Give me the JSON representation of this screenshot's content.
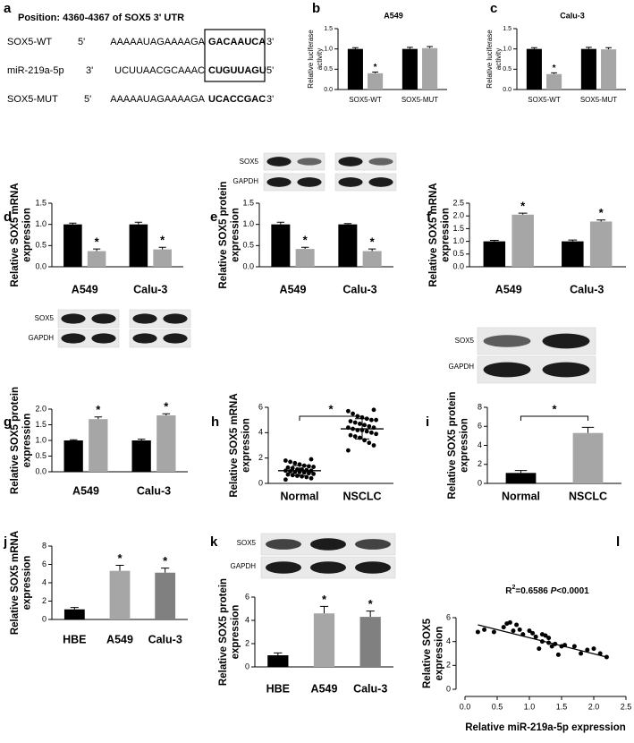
{
  "sequence_panel": {
    "panel": "a",
    "position": "Position: 4360-4367 of SOX5 3' UTR",
    "rows": [
      {
        "name": "SOX5-WT",
        "left": "5'",
        "seq": "AAAAAUAGAAAAGA",
        "site": "GACAAUCA",
        "right": "3'"
      },
      {
        "name": "miR-219a-5p",
        "left": "3'",
        "seq": "UCUUAACGCAAAC",
        "site": "CUGUUAGU",
        "right": "5'"
      },
      {
        "name": "SOX5-MUT",
        "left": "5'",
        "seq": "AAAAAUAGAAAAGA",
        "site": "UCACCGAC",
        "right": "3'"
      }
    ]
  },
  "blots": [
    {
      "labels": [
        "SOX5",
        "GAPDH"
      ]
    },
    {
      "labels": [
        "SOX5",
        "GAPDH"
      ]
    },
    {
      "labels": [
        "SOX5",
        "GAPDH"
      ]
    },
    {
      "labels": [
        "SOX5",
        "GAPDH"
      ]
    }
  ],
  "chart_data": [
    {
      "type": "bar",
      "panel": "b",
      "title": "A549",
      "ylabel": [
        "Relative luciferase",
        "activity"
      ],
      "categories": [
        "SOX5-WT",
        "SOX5-MUT"
      ],
      "series": [
        {
          "color": "#000000",
          "values": [
            1.0,
            1.0
          ],
          "errors": [
            0.03,
            0.04
          ]
        },
        {
          "color": "#a6a6a6",
          "values": [
            0.4,
            1.02
          ],
          "errors": [
            0.03,
            0.04
          ],
          "significance": [
            "*",
            null
          ]
        }
      ],
      "ylim": [
        0,
        1.5
      ],
      "yticks": [
        {
          "value": 0,
          "label": "0.0"
        },
        {
          "value": 0.5,
          "label": "0.5"
        },
        {
          "value": 1,
          "label": "1.0"
        },
        {
          "value": 1.5,
          "label": "1.5"
        }
      ]
    },
    {
      "type": "bar",
      "panel": "c",
      "title": "Calu-3",
      "ylabel": [
        "Relative luciferase",
        "activity"
      ],
      "categories": [
        "SOX5-WT",
        "SOX5-MUT"
      ],
      "series": [
        {
          "color": "#000000",
          "values": [
            1.0,
            1.0
          ],
          "errors": [
            0.03,
            0.04
          ]
        },
        {
          "color": "#a6a6a6",
          "values": [
            0.38,
            0.99
          ],
          "errors": [
            0.03,
            0.04
          ],
          "significance": [
            "*",
            null
          ]
        }
      ],
      "ylim": [
        0,
        1.5
      ],
      "yticks": [
        {
          "value": 0,
          "label": "0.0"
        },
        {
          "value": 0.5,
          "label": "0.5"
        },
        {
          "value": 1,
          "label": "1.0"
        },
        {
          "value": 1.5,
          "label": "1.5"
        }
      ]
    },
    {
      "type": "bar",
      "panel": "d",
      "ylabel": [
        "Relative SOX5 mRNA",
        "expression"
      ],
      "categories": [
        "A549",
        "Calu-3"
      ],
      "series": [
        {
          "color": "#000000",
          "values": [
            1.0,
            1.0
          ],
          "errors": [
            0.03,
            0.05
          ]
        },
        {
          "color": "#a6a6a6",
          "values": [
            0.37,
            0.41
          ],
          "errors": [
            0.05,
            0.05
          ],
          "significance": [
            "*",
            "*"
          ]
        }
      ],
      "ylim": [
        0,
        1.5
      ],
      "yticks": [
        {
          "value": 0,
          "label": "0.0"
        },
        {
          "value": 0.5,
          "label": "0.5"
        },
        {
          "value": 1,
          "label": "1.0"
        },
        {
          "value": 1.5,
          "label": "1.5"
        }
      ]
    },
    {
      "type": "bar",
      "panel": "e",
      "ylabel": [
        "Relative SOX5 protein",
        "expression"
      ],
      "categories": [
        "A549",
        "Calu-3"
      ],
      "series": [
        {
          "color": "#000000",
          "values": [
            1.0,
            1.0
          ],
          "errors": [
            0.05,
            0.02
          ]
        },
        {
          "color": "#a6a6a6",
          "values": [
            0.42,
            0.37
          ],
          "errors": [
            0.04,
            0.05
          ],
          "significance": [
            "*",
            "*"
          ]
        }
      ],
      "ylim": [
        0,
        1.5
      ],
      "yticks": [
        {
          "value": 0,
          "label": "0.0"
        },
        {
          "value": 0.5,
          "label": "0.5"
        },
        {
          "value": 1,
          "label": "1.0"
        },
        {
          "value": 1.5,
          "label": "1.5"
        }
      ]
    },
    {
      "type": "bar",
      "panel": "f",
      "ylabel": [
        "Relative SOX5 mRNA",
        "expression"
      ],
      "categories": [
        "A549",
        "Calu-3"
      ],
      "series": [
        {
          "color": "#000000",
          "values": [
            1.0,
            1.0
          ],
          "errors": [
            0.04,
            0.05
          ]
        },
        {
          "color": "#a6a6a6",
          "values": [
            2.05,
            1.78
          ],
          "errors": [
            0.06,
            0.06
          ],
          "significance": [
            "*",
            "*"
          ]
        }
      ],
      "ylim": [
        0,
        2.5
      ],
      "yticks": [
        {
          "value": 0,
          "label": "0.0"
        },
        {
          "value": 0.5,
          "label": "0.5"
        },
        {
          "value": 1,
          "label": "1.0"
        },
        {
          "value": 1.5,
          "label": "1.5"
        },
        {
          "value": 2,
          "label": "2.0"
        },
        {
          "value": 2.5,
          "label": "2.5"
        }
      ]
    },
    {
      "type": "bar",
      "panel": "g",
      "ylabel": [
        "Relative SOX5 protein",
        "expression"
      ],
      "categories": [
        "A549",
        "Calu-3"
      ],
      "series": [
        {
          "color": "#000000",
          "values": [
            1.0,
            1.0
          ],
          "errors": [
            0.02,
            0.04
          ]
        },
        {
          "color": "#a6a6a6",
          "values": [
            1.68,
            1.8
          ],
          "errors": [
            0.07,
            0.05
          ],
          "significance": [
            "*",
            "*"
          ]
        }
      ],
      "ylim": [
        0,
        2
      ],
      "yticks": [
        {
          "value": 0,
          "label": "0.0"
        },
        {
          "value": 0.5,
          "label": "0.5"
        },
        {
          "value": 1,
          "label": "1.0"
        },
        {
          "value": 1.5,
          "label": "1.5"
        },
        {
          "value": 2,
          "label": "2.0"
        }
      ]
    },
    {
      "type": "dotplot",
      "panel": "h",
      "ylabel": [
        "Relative SOX5 mRNA",
        "expression"
      ],
      "categories": [
        "Normal",
        "NSCLC"
      ],
      "points": [
        [
          0.3,
          0.4,
          0.5,
          0.55,
          0.6,
          0.65,
          0.7,
          0.75,
          0.8,
          0.85,
          0.9,
          0.9,
          0.95,
          1.0,
          1.0,
          1.05,
          1.1,
          1.1,
          1.2,
          1.25,
          1.3,
          1.35,
          1.4,
          1.5,
          1.6,
          1.7,
          1.8,
          1.9
        ],
        [
          2.6,
          3.0,
          3.2,
          3.4,
          3.6,
          3.7,
          3.8,
          3.9,
          4.0,
          4.1,
          4.2,
          4.2,
          4.3,
          4.4,
          4.4,
          4.5,
          4.6,
          4.7,
          4.8,
          4.9,
          5.0,
          5.0,
          5.1,
          5.2,
          5.3,
          5.5,
          5.7,
          5.8
        ]
      ],
      "means": [
        1.0,
        4.3
      ],
      "sd": [
        0.4,
        0.8
      ],
      "bracket_label": "*",
      "ylim": [
        0,
        6
      ],
      "yticks": [
        0,
        2,
        4,
        6
      ]
    },
    {
      "type": "bar",
      "panel": "i",
      "ylabel": [
        "Relative SOX5 protein",
        "expression"
      ],
      "categories": [
        "Normal",
        "NSCLC"
      ],
      "values": [
        1.1,
        5.3
      ],
      "errors": [
        0.25,
        0.6
      ],
      "colors": [
        "#000000",
        "#a6a6a6"
      ],
      "bracket_label": "*",
      "ylim": [
        0,
        8
      ],
      "yticks": [
        0,
        2,
        4,
        6,
        8
      ]
    },
    {
      "type": "bar",
      "panel": "j",
      "ylabel": [
        "Relative SOX5 mRNA",
        "expression"
      ],
      "categories": [
        "HBE",
        "A549",
        "Calu-3"
      ],
      "values": [
        1.1,
        5.3,
        5.1
      ],
      "errors": [
        0.2,
        0.6,
        0.5
      ],
      "colors": [
        "#000000",
        "#a6a6a6",
        "#808080"
      ],
      "significance": [
        null,
        "*",
        "*"
      ],
      "ylim": [
        0,
        8
      ],
      "yticks": [
        0,
        2,
        4,
        6,
        8
      ]
    },
    {
      "type": "bar",
      "panel": "k",
      "ylabel": [
        "Relative SOX5 protein",
        "expression"
      ],
      "categories": [
        "HBE",
        "A549",
        "Calu-3"
      ],
      "values": [
        1.0,
        4.6,
        4.3
      ],
      "errors": [
        0.2,
        0.6,
        0.5
      ],
      "colors": [
        "#000000",
        "#a6a6a6",
        "#808080"
      ],
      "significance": [
        null,
        "*",
        "*"
      ],
      "ylim": [
        0,
        6
      ],
      "yticks": [
        0,
        2,
        4,
        6
      ]
    },
    {
      "type": "scatter",
      "panel": "l",
      "title_parts": [
        {
          "text": "R"
        },
        {
          "text": "2",
          "sup": true
        },
        {
          "text": "=0.6586 "
        },
        {
          "text": "P",
          "italic": true
        },
        {
          "text": "<0.0001"
        }
      ],
      "xlabel": "Relative miR-219a-5p expression",
      "ylabel": [
        "Relative SOX5",
        "expression"
      ],
      "x": [
        0.2,
        0.3,
        0.45,
        0.6,
        0.65,
        0.7,
        0.75,
        0.8,
        0.85,
        0.9,
        1.0,
        1.05,
        1.1,
        1.15,
        1.2,
        1.2,
        1.25,
        1.3,
        1.3,
        1.35,
        1.4,
        1.45,
        1.5,
        1.55,
        1.7,
        1.8,
        1.9,
        2.0,
        2.1,
        2.2
      ],
      "y": [
        4.8,
        5.0,
        4.8,
        5.2,
        5.5,
        5.6,
        4.9,
        5.4,
        5.0,
        4.6,
        4.9,
        4.7,
        4.4,
        3.4,
        4.6,
        4.0,
        4.5,
        3.9,
        4.3,
        3.6,
        3.8,
        2.9,
        3.6,
        3.7,
        3.6,
        3.0,
        3.3,
        3.4,
        3.0,
        2.7
      ],
      "fit_line": {
        "x": [
          0.2,
          2.2
        ],
        "y": [
          5.4,
          2.7
        ]
      },
      "xlim": [
        0,
        2.5
      ],
      "xticks": [
        {
          "value": 0,
          "label": "0.0"
        },
        {
          "value": 0.5,
          "label": "0.5"
        },
        {
          "value": 1,
          "label": "1.0"
        },
        {
          "value": 1.5,
          "label": "1.5"
        },
        {
          "value": 2,
          "label": "2.0"
        },
        {
          "value": 2.5,
          "label": "2.5"
        }
      ],
      "ylim": [
        0,
        6
      ],
      "yticks": [
        0,
        2,
        4,
        6
      ]
    }
  ]
}
